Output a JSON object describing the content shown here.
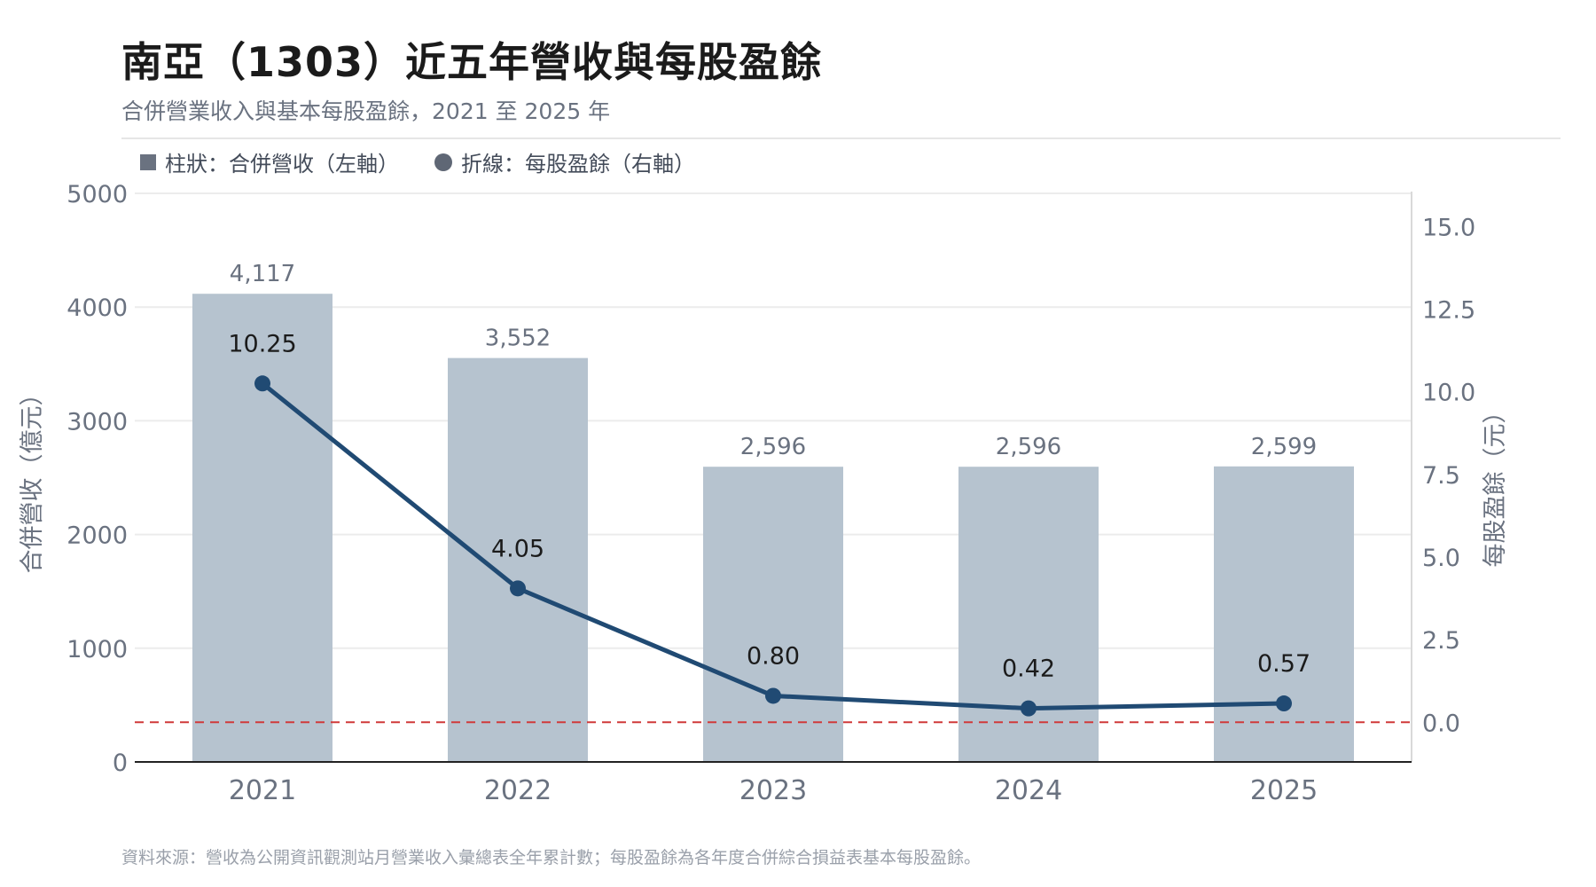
{
  "header": {
    "title": "南亞（1303）近五年營收與每股盈餘",
    "subtitle": "合併營業收入與基本每股盈餘，2021 至 2025 年"
  },
  "legend": {
    "bar_label": "柱狀：合併營收（左軸）",
    "line_label": "折線：每股盈餘（右軸）"
  },
  "footer": {
    "source": "資料來源：營收為公開資訊觀測站月營業收入彙總表全年累計數；每股盈餘為各年度合併綜合損益表基本每股盈餘。"
  },
  "colors": {
    "bar": "#b6c3cf",
    "line": "#204a73",
    "zero_line": "#d03a3a",
    "axis_text": "#6a7280",
    "grid": "#ececec"
  },
  "chart_data": {
    "type": "bar",
    "categories": [
      "2021",
      "2022",
      "2023",
      "2024",
      "2025"
    ],
    "bar_series": {
      "values": [
        4117,
        3552,
        2596,
        2596,
        2599
      ],
      "labels": [
        "4,117",
        "3,552",
        "2,596",
        "2,596",
        "2,599"
      ]
    },
    "line_series": {
      "values": [
        10.25,
        4.05,
        0.8,
        0.42,
        0.57
      ],
      "labels": [
        "10.25",
        "4.05",
        "0.80",
        "0.42",
        "0.57"
      ]
    },
    "left_axis": {
      "label": "合併營收（億元）",
      "min": 0,
      "max": 5000,
      "ticks": [
        0,
        1000,
        2000,
        3000,
        4000,
        5000
      ],
      "tick_labels": [
        "0",
        "1000",
        "2000",
        "3000",
        "4000",
        "5000"
      ]
    },
    "right_axis": {
      "label": "每股盈餘（元）",
      "min": -1.2,
      "max": 16,
      "ticks": [
        0,
        2.5,
        5,
        7.5,
        10,
        12.5,
        15
      ],
      "tick_labels": [
        "0.0",
        "2.5",
        "5.0",
        "7.5",
        "10.0",
        "12.5",
        "15.0"
      ]
    },
    "reference_line": {
      "axis": "right",
      "value": 0,
      "style": "dashed"
    },
    "grid": true,
    "legend_position": "top-left"
  }
}
